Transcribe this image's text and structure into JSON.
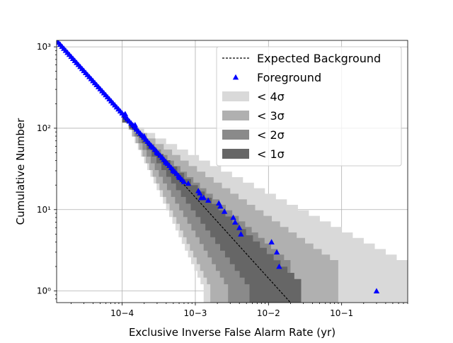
{
  "chart_data": {
    "type": "scatter",
    "xscale": "log",
    "yscale": "log",
    "xlim": [
      1.27e-05,
      0.8
    ],
    "ylim": [
      0.72,
      1200
    ],
    "xlabel": "Exclusive Inverse False Alarm Rate (yr)",
    "ylabel": "Cumulative Number",
    "grid": true,
    "legend_position": "top-right",
    "x_tick_labels": [
      {
        "value": 0.0001,
        "label": "10−4"
      },
      {
        "value": 0.001,
        "label": "10−3"
      },
      {
        "value": 0.01,
        "label": "10−2"
      },
      {
        "value": 0.1,
        "label": "10−1"
      }
    ],
    "y_tick_labels": [
      {
        "value": 1,
        "label": "10⁰"
      },
      {
        "value": 10,
        "label": "10¹"
      },
      {
        "value": 100,
        "label": "10²"
      },
      {
        "value": 1000,
        "label": "10³"
      }
    ],
    "expected_background": {
      "name": "Expected Background",
      "x": [
        0.0001,
        0.02
      ],
      "y": [
        140,
        0.72
      ]
    },
    "bands": [
      {
        "name": "< 4σ",
        "color": "#d9d9d9",
        "lower_x": [
          0.0001,
          0.0013
        ],
        "upper_x": [
          0.0001,
          0.8
        ],
        "y": [
          140,
          1.0
        ],
        "upper_y_end": 2.4
      },
      {
        "name": "< 3σ",
        "color": "#b0b0b0",
        "lower_x": [
          0.0001,
          0.0016
        ],
        "upper_x": [
          0.0001,
          0.09
        ],
        "y": [
          140,
          1.0
        ],
        "upper_y_end": 2.4
      },
      {
        "name": "< 2σ",
        "color": "#8a8a8a",
        "lower_x": [
          0.0001,
          0.0028
        ],
        "upper_x": [
          0.0001,
          0.02
        ],
        "y": [
          140,
          1.0
        ],
        "upper_y_end": 2.4
      },
      {
        "name": "< 1σ",
        "color": "#666666",
        "lower_x": [
          0.0001,
          0.0055
        ],
        "upper_x": [
          0.0001,
          0.028
        ],
        "y": [
          140,
          1.0
        ],
        "upper_y_end": 1.4
      }
    ],
    "foreground": {
      "name": "Foreground",
      "color": "#0000ff",
      "dense_curve": {
        "x_start": 1.27e-05,
        "x_end": 0.0007,
        "y_start": 1200,
        "y_end": 22
      },
      "points": [
        {
          "x": 0.00011,
          "y": 150
        },
        {
          "x": 0.00015,
          "y": 110
        },
        {
          "x": 0.0002,
          "y": 80
        },
        {
          "x": 0.00025,
          "y": 60
        },
        {
          "x": 0.0003,
          "y": 50
        },
        {
          "x": 0.0004,
          "y": 38
        },
        {
          "x": 0.0005,
          "y": 30
        },
        {
          "x": 0.0006,
          "y": 25
        },
        {
          "x": 0.0008,
          "y": 21
        },
        {
          "x": 0.0011,
          "y": 17
        },
        {
          "x": 0.00115,
          "y": 16
        },
        {
          "x": 0.0012,
          "y": 14
        },
        {
          "x": 0.0013,
          "y": 14
        },
        {
          "x": 0.0015,
          "y": 13
        },
        {
          "x": 0.0021,
          "y": 12
        },
        {
          "x": 0.0022,
          "y": 11
        },
        {
          "x": 0.0025,
          "y": 9.5
        },
        {
          "x": 0.0033,
          "y": 8
        },
        {
          "x": 0.0035,
          "y": 7
        },
        {
          "x": 0.004,
          "y": 6
        },
        {
          "x": 0.0042,
          "y": 5
        },
        {
          "x": 0.011,
          "y": 4
        },
        {
          "x": 0.013,
          "y": 3
        },
        {
          "x": 0.014,
          "y": 2
        },
        {
          "x": 0.3,
          "y": 1
        }
      ]
    },
    "legend": [
      {
        "label": "Expected Background",
        "kind": "dashed-line"
      },
      {
        "label": "Foreground",
        "kind": "triangle-marker"
      },
      {
        "label": "< 4σ",
        "kind": "patch",
        "color": "#d9d9d9"
      },
      {
        "label": "< 3σ",
        "kind": "patch",
        "color": "#b0b0b0"
      },
      {
        "label": "< 2σ",
        "kind": "patch",
        "color": "#8a8a8a"
      },
      {
        "label": "< 1σ",
        "kind": "patch",
        "color": "#666666"
      }
    ]
  }
}
